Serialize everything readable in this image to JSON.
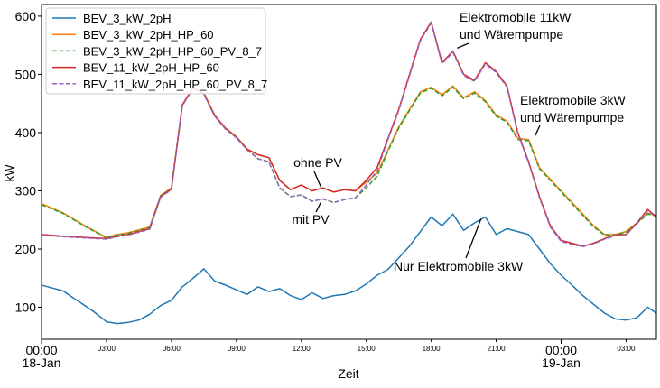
{
  "chart_data": {
    "type": "line",
    "title": "",
    "xlabel": "Zeit",
    "ylabel": "kW",
    "ylim": [
      45,
      620
    ],
    "xlim": [
      0,
      28.4
    ],
    "x_unit": "hours since 18-Jan 00:00",
    "x_ticks": [
      {
        "x": 0,
        "label": "00:00",
        "sublabel": "18-Jan",
        "major": true
      },
      {
        "x": 3,
        "label": "03:00",
        "major": false
      },
      {
        "x": 6,
        "label": "06:00",
        "major": false
      },
      {
        "x": 9,
        "label": "09:00",
        "major": false
      },
      {
        "x": 12,
        "label": "12:00",
        "major": false
      },
      {
        "x": 15,
        "label": "15:00",
        "major": false
      },
      {
        "x": 18,
        "label": "18:00",
        "major": false
      },
      {
        "x": 21,
        "label": "21:00",
        "major": false
      },
      {
        "x": 24,
        "label": "00:00",
        "sublabel": "19-Jan",
        "major": true
      },
      {
        "x": 27,
        "label": "03:00",
        "major": false
      }
    ],
    "y_ticks": [
      100,
      200,
      300,
      400,
      500,
      600
    ],
    "grid": false,
    "legend_position": "top-left",
    "series": [
      {
        "name": "BEV_3_kW_2pH",
        "color": "#1f77b4",
        "dash": "solid",
        "points": [
          [
            0,
            138
          ],
          [
            0.5,
            133
          ],
          [
            1,
            128
          ],
          [
            1.5,
            115
          ],
          [
            2,
            103
          ],
          [
            2.5,
            90
          ],
          [
            3,
            75
          ],
          [
            3.5,
            72
          ],
          [
            4,
            74
          ],
          [
            4.5,
            78
          ],
          [
            5,
            88
          ],
          [
            5.5,
            103
          ],
          [
            6,
            112
          ],
          [
            6.5,
            135
          ],
          [
            7,
            150
          ],
          [
            7.5,
            166
          ],
          [
            8,
            145
          ],
          [
            8.5,
            138
          ],
          [
            9,
            130
          ],
          [
            9.5,
            122
          ],
          [
            10,
            135
          ],
          [
            10.5,
            127
          ],
          [
            11,
            132
          ],
          [
            11.5,
            120
          ],
          [
            12,
            113
          ],
          [
            12.5,
            125
          ],
          [
            13,
            115
          ],
          [
            13.5,
            120
          ],
          [
            14,
            122
          ],
          [
            14.5,
            128
          ],
          [
            15,
            140
          ],
          [
            15.5,
            155
          ],
          [
            16,
            165
          ],
          [
            16.5,
            185
          ],
          [
            17,
            205
          ],
          [
            17.5,
            230
          ],
          [
            18,
            255
          ],
          [
            18.5,
            240
          ],
          [
            19,
            260
          ],
          [
            19.5,
            232
          ],
          [
            20,
            245
          ],
          [
            20.5,
            255
          ],
          [
            21,
            225
          ],
          [
            21.5,
            235
          ],
          [
            22,
            230
          ],
          [
            22.5,
            225
          ],
          [
            23,
            200
          ],
          [
            23.5,
            175
          ],
          [
            24,
            155
          ],
          [
            24.5,
            138
          ],
          [
            25,
            120
          ],
          [
            25.5,
            105
          ],
          [
            26,
            90
          ],
          [
            26.5,
            80
          ],
          [
            27,
            78
          ],
          [
            27.5,
            82
          ],
          [
            28,
            100
          ],
          [
            28.4,
            90
          ]
        ]
      },
      {
        "name": "BEV_3_kW_2pH_HP_60",
        "color": "#ff7f0e",
        "dash": "solid",
        "points": [
          [
            0,
            278
          ],
          [
            1,
            262
          ],
          [
            2,
            240
          ],
          [
            3,
            220
          ],
          [
            3.5,
            225
          ],
          [
            4,
            228
          ],
          [
            5,
            238
          ],
          [
            5.5,
            292
          ],
          [
            6,
            305
          ],
          [
            6.5,
            448
          ],
          [
            7,
            478
          ],
          [
            7.5,
            468
          ],
          [
            8,
            430
          ],
          [
            8.5,
            408
          ],
          [
            9,
            393
          ],
          [
            9.5,
            372
          ],
          [
            10,
            362
          ],
          [
            10.5,
            357
          ],
          [
            11,
            318
          ],
          [
            11.5,
            302
          ],
          [
            12,
            310
          ],
          [
            12.5,
            300
          ],
          [
            13,
            305
          ],
          [
            13.5,
            298
          ],
          [
            14,
            302
          ],
          [
            14.5,
            300
          ],
          [
            15,
            315
          ],
          [
            15.5,
            330
          ],
          [
            16,
            370
          ],
          [
            16.5,
            410
          ],
          [
            17,
            440
          ],
          [
            17.5,
            470
          ],
          [
            18,
            478
          ],
          [
            18.5,
            465
          ],
          [
            19,
            480
          ],
          [
            19.5,
            460
          ],
          [
            20,
            470
          ],
          [
            20.5,
            455
          ],
          [
            21,
            430
          ],
          [
            21.5,
            420
          ],
          [
            22,
            390
          ],
          [
            22.5,
            388
          ],
          [
            23,
            340
          ],
          [
            23.5,
            320
          ],
          [
            24,
            300
          ],
          [
            24.5,
            280
          ],
          [
            25,
            260
          ],
          [
            25.5,
            240
          ],
          [
            26,
            225
          ],
          [
            26.5,
            225
          ],
          [
            27,
            230
          ],
          [
            27.5,
            245
          ],
          [
            28,
            262
          ],
          [
            28.4,
            258
          ]
        ]
      },
      {
        "name": "BEV_3_kW_2pH_HP_60_PV_8_7",
        "color": "#2ca02c",
        "dash": "dashed",
        "points": [
          [
            0,
            276
          ],
          [
            1,
            261
          ],
          [
            2,
            239
          ],
          [
            3,
            219
          ],
          [
            3.5,
            224
          ],
          [
            4,
            227
          ],
          [
            5,
            237
          ],
          [
            5.5,
            291
          ],
          [
            6,
            304
          ],
          [
            6.5,
            447
          ],
          [
            7,
            477
          ],
          [
            7.5,
            467
          ],
          [
            8,
            429
          ],
          [
            8.5,
            407
          ],
          [
            9,
            392
          ],
          [
            9.5,
            371
          ],
          [
            10,
            355
          ],
          [
            10.5,
            350
          ],
          [
            11,
            305
          ],
          [
            11.5,
            290
          ],
          [
            12,
            293
          ],
          [
            12.5,
            282
          ],
          [
            13,
            286
          ],
          [
            13.5,
            280
          ],
          [
            14,
            285
          ],
          [
            14.5,
            288
          ],
          [
            15,
            305
          ],
          [
            15.5,
            325
          ],
          [
            16,
            368
          ],
          [
            16.5,
            408
          ],
          [
            17,
            438
          ],
          [
            17.5,
            468
          ],
          [
            18,
            476
          ],
          [
            18.5,
            463
          ],
          [
            19,
            478
          ],
          [
            19.5,
            458
          ],
          [
            20,
            468
          ],
          [
            20.5,
            453
          ],
          [
            21,
            428
          ],
          [
            21.5,
            418
          ],
          [
            22,
            388
          ],
          [
            22.5,
            386
          ],
          [
            23,
            338
          ],
          [
            23.5,
            318
          ],
          [
            24,
            298
          ],
          [
            24.5,
            278
          ],
          [
            25,
            258
          ],
          [
            25.5,
            238
          ],
          [
            26,
            224
          ],
          [
            26.5,
            224
          ],
          [
            27,
            229
          ],
          [
            27.5,
            244
          ],
          [
            28,
            260
          ],
          [
            28.4,
            257
          ]
        ]
      },
      {
        "name": "BEV_11_kW_2pH_HP_60",
        "color": "#d62728",
        "dash": "solid",
        "points": [
          [
            0,
            225
          ],
          [
            1,
            222
          ],
          [
            2,
            220
          ],
          [
            3,
            218
          ],
          [
            3.5,
            222
          ],
          [
            4,
            225
          ],
          [
            5,
            235
          ],
          [
            5.5,
            290
          ],
          [
            6,
            303
          ],
          [
            6.5,
            447
          ],
          [
            7,
            477
          ],
          [
            7.5,
            467
          ],
          [
            8,
            429
          ],
          [
            8.5,
            407
          ],
          [
            9,
            392
          ],
          [
            9.5,
            371
          ],
          [
            10,
            362
          ],
          [
            10.5,
            357
          ],
          [
            11,
            318
          ],
          [
            11.5,
            302
          ],
          [
            12,
            310
          ],
          [
            12.5,
            300
          ],
          [
            13,
            305
          ],
          [
            13.5,
            298
          ],
          [
            14,
            302
          ],
          [
            14.5,
            300
          ],
          [
            15,
            318
          ],
          [
            15.5,
            340
          ],
          [
            16,
            390
          ],
          [
            16.5,
            440
          ],
          [
            17,
            500
          ],
          [
            17.5,
            560
          ],
          [
            18,
            590
          ],
          [
            18.5,
            520
          ],
          [
            19,
            540
          ],
          [
            19.5,
            500
          ],
          [
            20,
            490
          ],
          [
            20.5,
            520
          ],
          [
            21,
            505
          ],
          [
            21.5,
            480
          ],
          [
            22,
            400
          ],
          [
            22.5,
            350
          ],
          [
            23,
            290
          ],
          [
            23.5,
            240
          ],
          [
            24,
            215
          ],
          [
            24.5,
            210
          ],
          [
            25,
            205
          ],
          [
            25.5,
            210
          ],
          [
            26,
            218
          ],
          [
            26.5,
            224
          ],
          [
            27,
            225
          ],
          [
            27.5,
            245
          ],
          [
            28,
            268
          ],
          [
            28.4,
            255
          ]
        ]
      },
      {
        "name": "BEV_11_kW_2pH_HP_60_PV_8_7",
        "color": "#9467bd",
        "dash": "dashed",
        "points": [
          [
            0,
            224
          ],
          [
            1,
            221
          ],
          [
            2,
            219
          ],
          [
            3,
            217
          ],
          [
            3.5,
            221
          ],
          [
            4,
            224
          ],
          [
            5,
            234
          ],
          [
            5.5,
            289
          ],
          [
            6,
            302
          ],
          [
            6.5,
            446
          ],
          [
            7,
            476
          ],
          [
            7.5,
            466
          ],
          [
            8,
            428
          ],
          [
            8.5,
            406
          ],
          [
            9,
            391
          ],
          [
            9.5,
            370
          ],
          [
            10,
            355
          ],
          [
            10.5,
            350
          ],
          [
            11,
            305
          ],
          [
            11.5,
            290
          ],
          [
            12,
            293
          ],
          [
            12.5,
            282
          ],
          [
            13,
            286
          ],
          [
            13.5,
            280
          ],
          [
            14,
            285
          ],
          [
            14.5,
            288
          ],
          [
            15,
            310
          ],
          [
            15.5,
            335
          ],
          [
            16,
            388
          ],
          [
            16.5,
            438
          ],
          [
            17,
            498
          ],
          [
            17.5,
            558
          ],
          [
            18,
            588
          ],
          [
            18.5,
            518
          ],
          [
            19,
            538
          ],
          [
            19.5,
            498
          ],
          [
            20,
            488
          ],
          [
            20.5,
            518
          ],
          [
            21,
            503
          ],
          [
            21.5,
            478
          ],
          [
            22,
            398
          ],
          [
            22.5,
            348
          ],
          [
            23,
            288
          ],
          [
            23.5,
            238
          ],
          [
            24,
            213
          ],
          [
            24.5,
            208
          ],
          [
            25,
            204
          ],
          [
            25.5,
            209
          ],
          [
            26,
            217
          ],
          [
            26.5,
            223
          ],
          [
            27,
            224
          ],
          [
            27.5,
            244
          ],
          [
            28,
            266
          ],
          [
            28.4,
            254
          ]
        ]
      }
    ],
    "annotations": [
      {
        "text": "Elektromobile 11kW",
        "line2": "und Wärempumpe",
        "at": [
          19.2,
          545
        ]
      },
      {
        "text": "Elektromobile 3kW",
        "line2": "und Wärempumpe",
        "at": [
          22.8,
          395
        ]
      },
      {
        "text": "ohne PV",
        "at": [
          12.9,
          307
        ]
      },
      {
        "text": "mit PV",
        "at": [
          12.9,
          280
        ]
      },
      {
        "text": "Nur Elektromobile 3kW",
        "at": [
          20.3,
          252
        ]
      }
    ]
  }
}
